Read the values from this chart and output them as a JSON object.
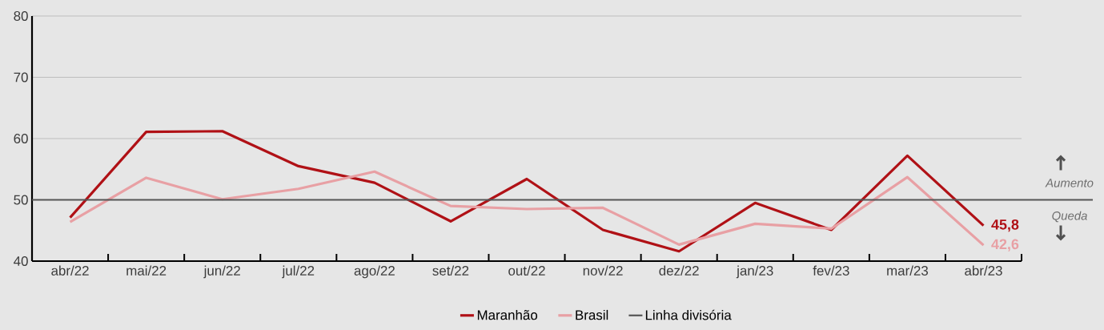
{
  "chart_data": {
    "type": "line",
    "categories": [
      "abr/22",
      "mai/22",
      "jun/22",
      "jul/22",
      "ago/22",
      "set/22",
      "out/22",
      "nov/22",
      "dez/22",
      "jan/23",
      "fev/23",
      "mar/23",
      "abr/23"
    ],
    "series": [
      {
        "name": "Maranhão",
        "color": "#b01116",
        "values": [
          47.1,
          61.1,
          61.2,
          55.5,
          52.8,
          46.5,
          53.4,
          45.1,
          41.6,
          49.5,
          45.1,
          57.2,
          45.8
        ],
        "value_labels": [
          null,
          null,
          null,
          null,
          null,
          null,
          null,
          null,
          null,
          null,
          null,
          null,
          "45,8"
        ]
      },
      {
        "name": "Brasil",
        "color": "#e8a0a4",
        "values": [
          46.4,
          53.6,
          50.1,
          51.8,
          54.6,
          49.0,
          48.5,
          48.7,
          42.7,
          46.1,
          45.3,
          53.7,
          42.6
        ],
        "value_labels": [
          null,
          null,
          null,
          null,
          null,
          null,
          null,
          null,
          null,
          null,
          null,
          null,
          "42,6"
        ]
      }
    ],
    "ylim": [
      40,
      80
    ],
    "yticks": [
      40,
      50,
      60,
      70,
      80
    ],
    "grid": "y",
    "legend": "bottom",
    "marker": "none",
    "line_style": "solid",
    "ref_lines": [
      {
        "axis": "y",
        "value": 50,
        "label": "Linha divisória",
        "color": "#555555"
      }
    ],
    "annotations": [
      "Aumento",
      "Queda"
    ]
  }
}
